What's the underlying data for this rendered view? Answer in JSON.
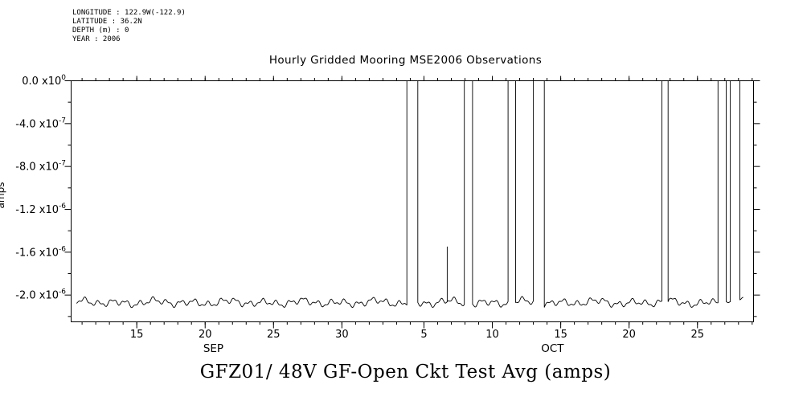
{
  "metadata": {
    "lines": [
      "LONGITUDE : 122.9W(-122.9)",
      "LATITUDE : 36.2N",
      "DEPTH (m) : 0",
      "YEAR : 2006"
    ]
  },
  "chart_data": {
    "type": "line",
    "title": "Hourly Gridded Mooring MSE2006 Observations",
    "bottom_label": "GFZ01/ 48V GF-Open Ckt Test Avg (amps)",
    "ylabel": "amps",
    "grid": false,
    "legend": "none",
    "x_axis": {
      "min": 10.2,
      "max": 60.1,
      "unit": "day-of-period (Sep 1 = 1, Oct 1 = 31), year 2006",
      "major_ticks": [
        {
          "day": 15,
          "label": "15"
        },
        {
          "day": 20,
          "label": "20"
        },
        {
          "day": 25,
          "label": "25"
        },
        {
          "day": 30,
          "label": "30"
        },
        {
          "day": 36,
          "label": "5"
        },
        {
          "day": 41,
          "label": "10"
        },
        {
          "day": 46,
          "label": "15"
        },
        {
          "day": 51,
          "label": "20"
        },
        {
          "day": 56,
          "label": "25"
        }
      ],
      "minor_tick_interval": 1,
      "month_labels": [
        {
          "day": 20.6,
          "label": "SEP"
        },
        {
          "day": 45.4,
          "label": "OCT"
        }
      ]
    },
    "y_axis": {
      "min": -2.25e-06,
      "max": 0,
      "minor_tick_interval": 2e-07,
      "major_ticks": [
        {
          "value": 0,
          "mantissa": "0.0",
          "exponent": "0"
        },
        {
          "value": -4e-07,
          "mantissa": "-4.0",
          "exponent": "-7"
        },
        {
          "value": -8e-07,
          "mantissa": "-8.0",
          "exponent": "-7"
        },
        {
          "value": -1.2e-06,
          "mantissa": "-1.2",
          "exponent": "-6"
        },
        {
          "value": -1.6e-06,
          "mantissa": "-1.6",
          "exponent": "-6"
        },
        {
          "value": -2e-06,
          "mantissa": "-2.0",
          "exponent": "-6"
        }
      ]
    },
    "series": {
      "name": "GFZ01/ 48V GF-Open Ckt Test Avg",
      "start_day": 10.6,
      "end_day": 59.35,
      "baseline": -2.07e-06,
      "noise": [
        {
          "amp": 2.2e-08,
          "period": 1.0,
          "phase": 0.3
        },
        {
          "amp": 1.6e-08,
          "period": 2.7,
          "phase": 1.4
        },
        {
          "amp": 1.2e-08,
          "period": 0.45,
          "phase": 2.1
        },
        {
          "amp": 8e-09,
          "period": 5.3,
          "phase": 0.7
        }
      ],
      "pulses": [
        {
          "start": 34.75,
          "end": 35.55,
          "level": 0
        },
        {
          "start": 38.95,
          "end": 39.55,
          "level": 0
        },
        {
          "start": 42.15,
          "end": 42.7,
          "level": 0
        },
        {
          "start": 44.0,
          "end": 44.8,
          "level": 0
        },
        {
          "start": 53.4,
          "end": 53.85,
          "level": 0
        },
        {
          "start": 57.5,
          "end": 58.1,
          "level": 0
        },
        {
          "start": 58.4,
          "end": 59.1,
          "level": 0
        }
      ],
      "spikes": [
        {
          "day": 37.7,
          "level": -1.55e-06
        }
      ]
    },
    "colors": {
      "line": "#000000",
      "background": "#ffffff"
    }
  }
}
